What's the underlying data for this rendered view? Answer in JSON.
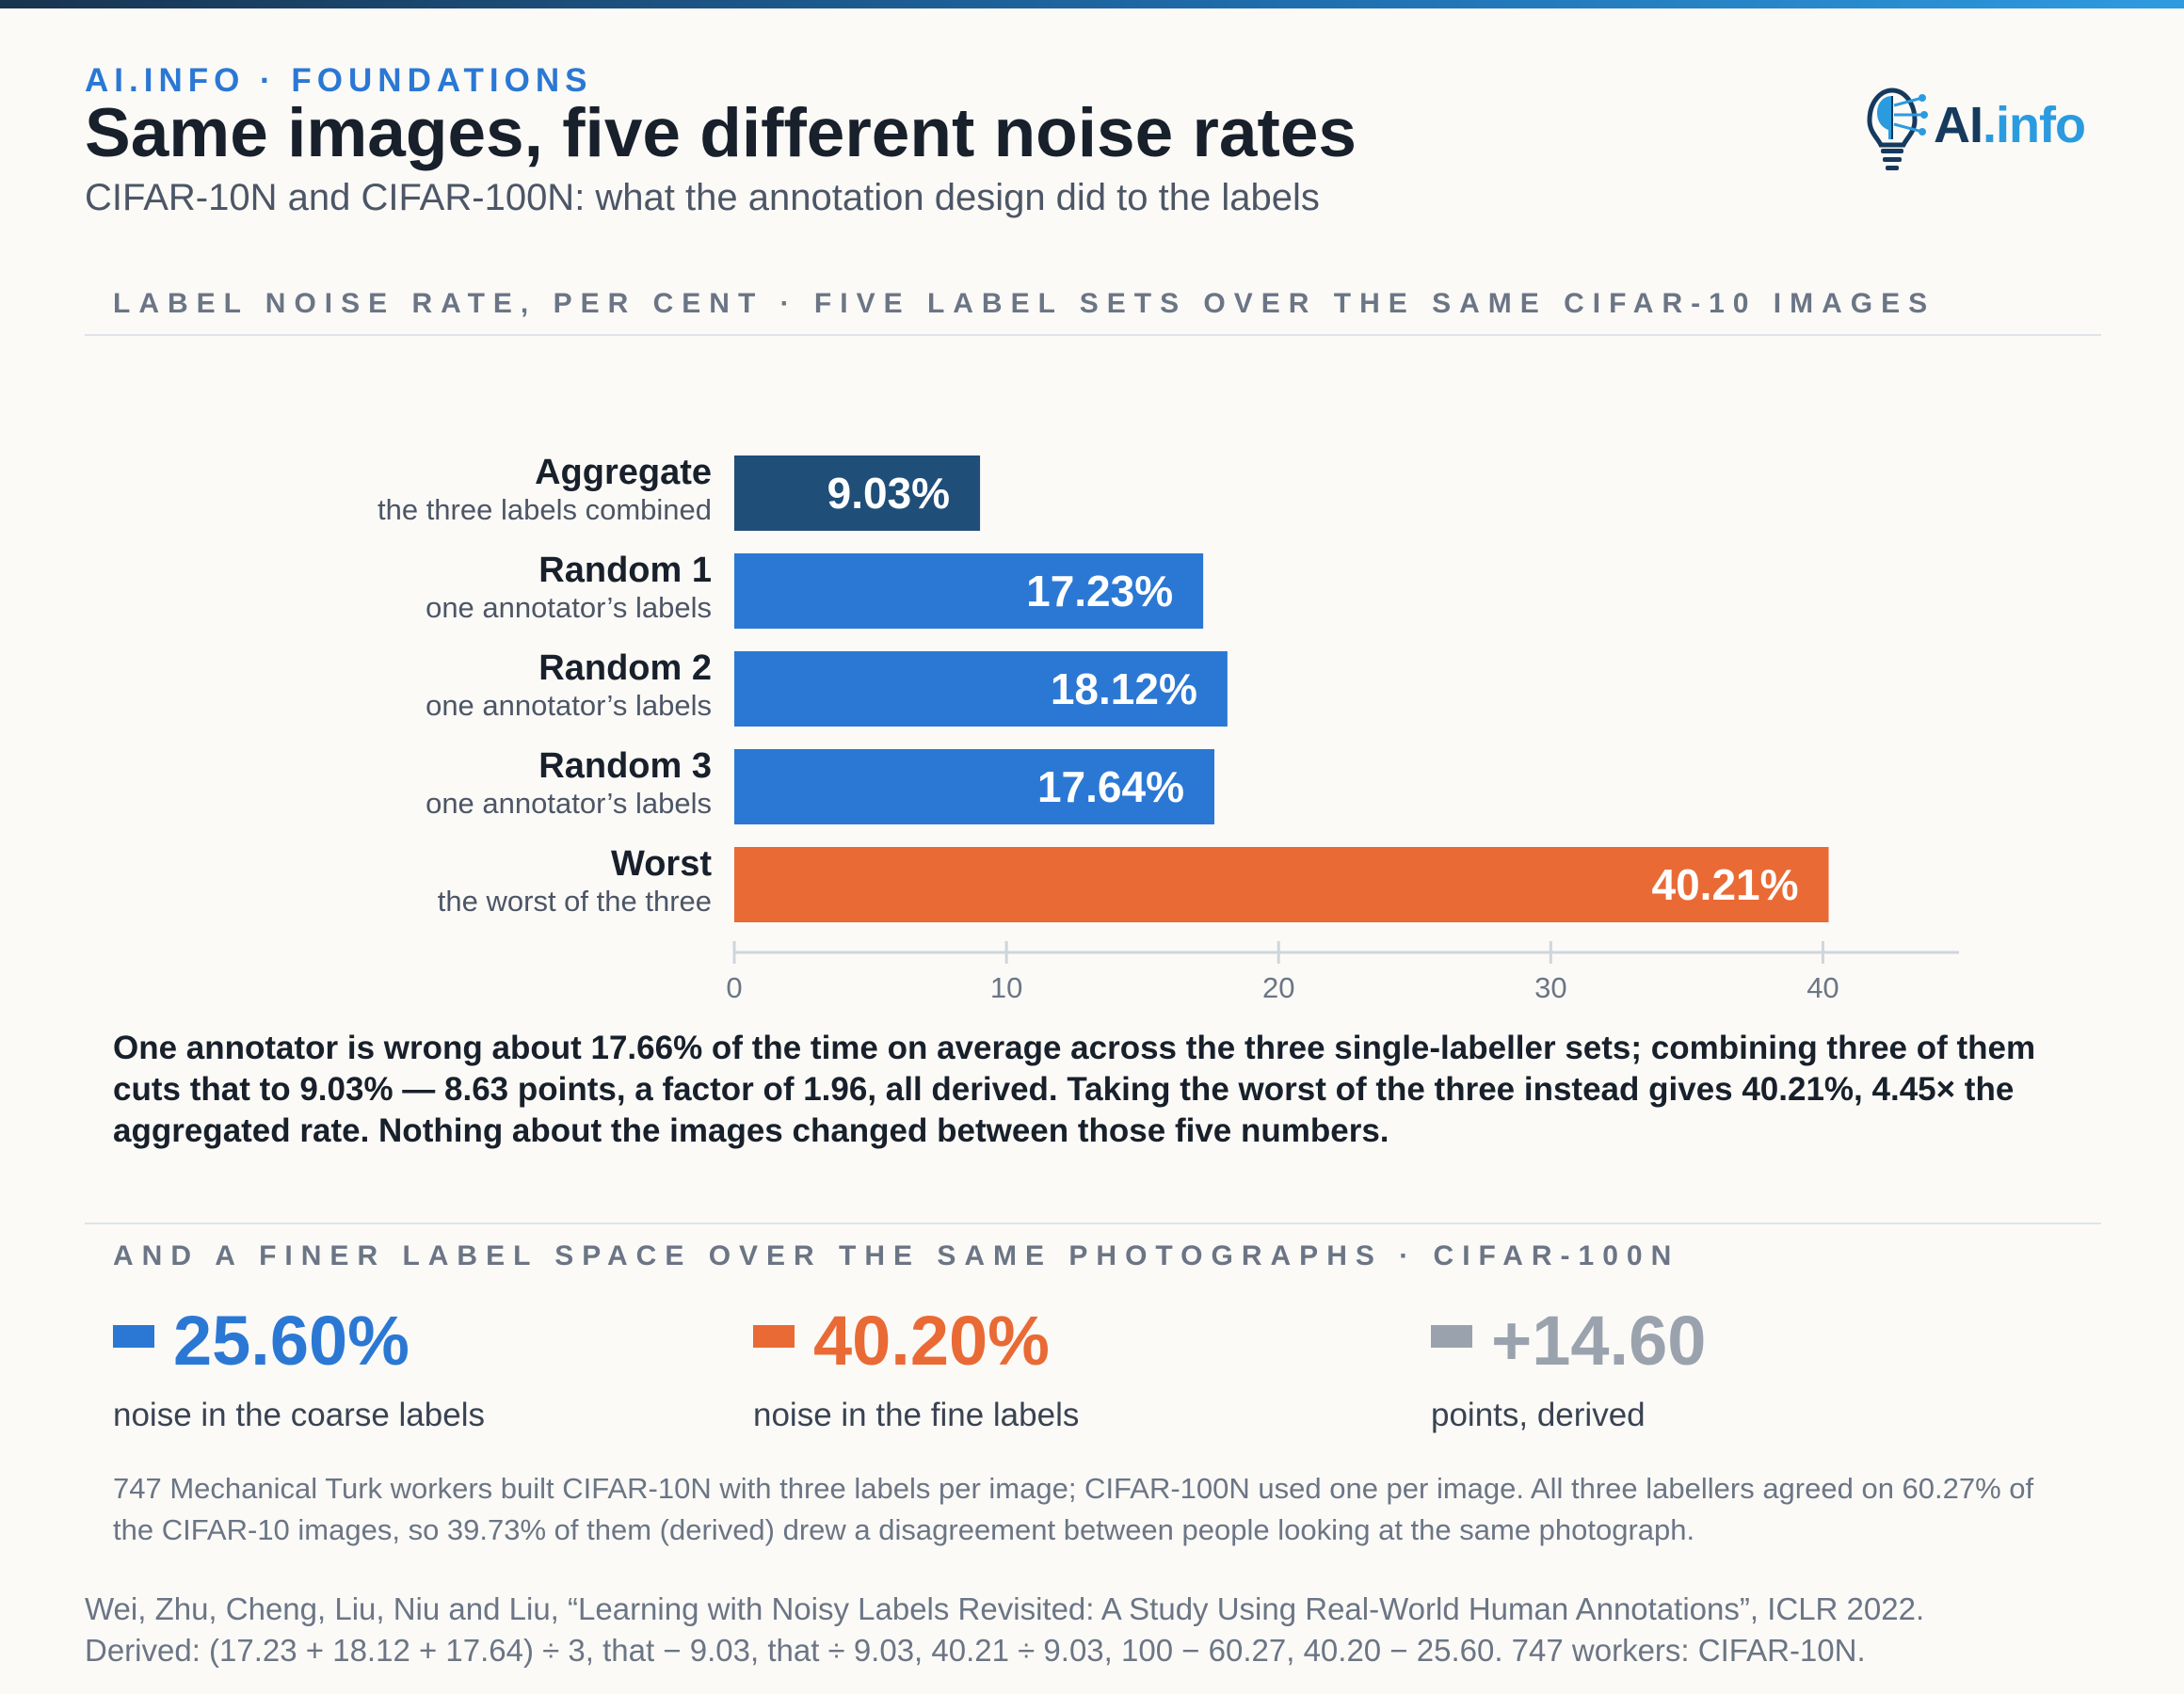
{
  "header": {
    "eyebrow": "AI.INFO · FOUNDATIONS",
    "title": "Same images, five different noise rates",
    "subtitle": "CIFAR-10N and CIFAR-100N: what the annotation design did to the labels"
  },
  "logo": {
    "text_ai": "AI",
    "text_info": ".info",
    "icon": "lightbulb-brain-icon"
  },
  "chart_data": {
    "type": "bar",
    "orientation": "horizontal",
    "title": "LABEL NOISE RATE, PER CENT · FIVE LABEL SETS OVER THE SAME CIFAR-10 IMAGES",
    "categories": [
      "Aggregate",
      "Random 1",
      "Random 2",
      "Random 3",
      "Worst"
    ],
    "category_notes": [
      "the three labels combined",
      "one annotator’s labels",
      "one annotator’s labels",
      "one annotator’s labels",
      "the worst of the three"
    ],
    "values": [
      9.03,
      17.23,
      18.12,
      17.64,
      40.21
    ],
    "value_labels": [
      "9.03%",
      "17.23%",
      "18.12%",
      "17.64%",
      "40.21%"
    ],
    "colors": [
      "#1f4e79",
      "#2b78d4",
      "#2b78d4",
      "#2b78d4",
      "#e96a35"
    ],
    "xlim": [
      0,
      45
    ],
    "xticks": [
      0,
      10,
      20,
      30,
      40
    ],
    "xtick_labels": [
      "0",
      "10",
      "20",
      "30",
      "40"
    ],
    "grid": false
  },
  "insight": "One annotator is wrong about 17.66% of the time on average across the three single-labeller sets; combining three of them cuts that to 9.03% — 8.63 points, a factor of 1.96, all derived. Taking the worst of the three instead gives 40.21%, 4.45× the aggregated rate. Nothing about the images changed between those five numbers.",
  "cifar100": {
    "section_label": "AND A FINER LABEL SPACE OVER THE SAME PHOTOGRAPHS · CIFAR-100N",
    "stats": [
      {
        "value": "25.60%",
        "caption": "noise in the coarse labels",
        "color": "#2b78d4"
      },
      {
        "value": "40.20%",
        "caption": "noise in the fine labels",
        "color": "#e96a35"
      },
      {
        "value": "+14.60",
        "caption": "points, derived",
        "color": "#9aa3ad"
      }
    ]
  },
  "note": "747 Mechanical Turk workers built CIFAR-10N with three labels per image; CIFAR-100N used one per image. All three labellers agreed on 60.27% of the CIFAR-10 images, so 39.73% of them (derived) drew a disagreement between people looking at the same photograph.",
  "citation": {
    "line1": "Wei, Zhu, Cheng, Liu, Niu and Liu, “Learning with Noisy Labels Revisited: A Study Using Real-World Human Annotations”, ICLR 2022.",
    "line2": "Derived: (17.23 + 18.12 + 17.64) ÷ 3, that − 9.03, that ÷ 9.03, 40.21 ÷ 9.03, 100 − 60.27, 40.20 − 25.60. 747 workers: CIFAR-10N."
  }
}
